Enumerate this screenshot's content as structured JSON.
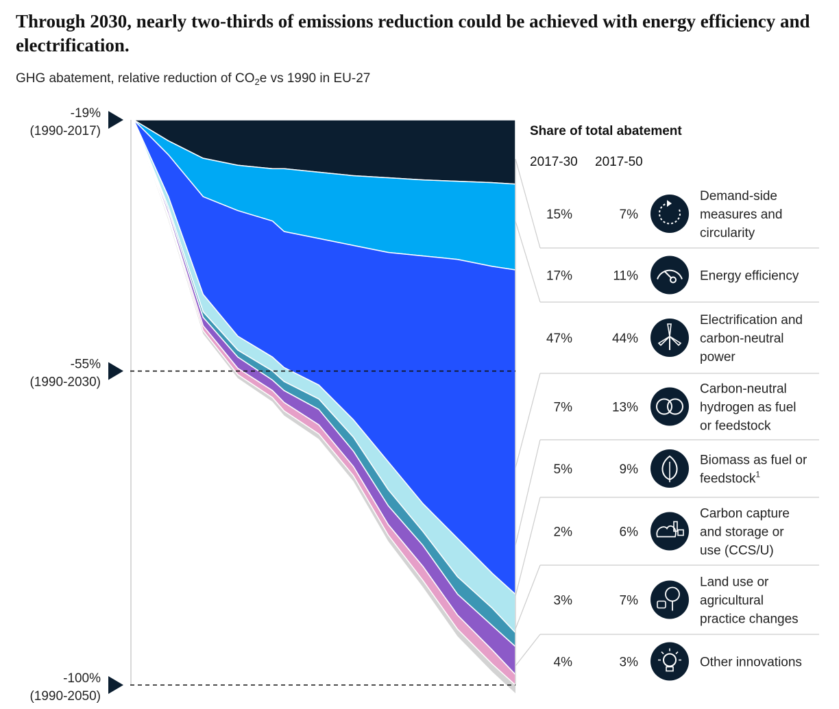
{
  "title": "Through 2030, nearly two-thirds of emissions reduction could be achieved with energy efficiency and electrification.",
  "subtitle_main": "GHG abatement, relative reduction of CO",
  "subtitle_sub": "2",
  "subtitle_rest": "e vs 1990 in EU-27",
  "colors": {
    "dark": "#0b1e30",
    "demand": "#00a9f4",
    "efficiency": "#2251ff",
    "electrification": "#aee6f0",
    "hydrogen": "#3c96b4",
    "biomass": "#8c5ac8",
    "ccs": "#e69fc8",
    "land": "#d3d3d3",
    "icon_bg": "#0b1e30"
  },
  "chart_data": {
    "type": "area",
    "x": [
      2017,
      2020,
      2023,
      2026,
      2029,
      2030,
      2033,
      2036,
      2039,
      2042,
      2045,
      2048,
      2050
    ],
    "y_reference_markers": [
      {
        "value": -19,
        "label": "-19%",
        "period": "(1990-2017)"
      },
      {
        "value": -55,
        "label": "-55%",
        "period": "(1990-2030)"
      },
      {
        "value": -100,
        "label": "-100%",
        "period": "(1990-2050)"
      }
    ],
    "ylim": [
      -100,
      -19
    ],
    "share_header": "Share of total abatement",
    "columns": [
      "2017-30",
      "2017-50"
    ],
    "categories": [
      {
        "name_lines": [
          "Demand-side",
          "measures and",
          "circularity"
        ],
        "icon": "circular-arrow-icon",
        "share_2017_30": "15%",
        "share_2017_50": "7%"
      },
      {
        "name_lines": [
          "Energy efficiency"
        ],
        "icon": "speedometer-icon",
        "share_2017_30": "17%",
        "share_2017_50": "11%"
      },
      {
        "name_lines": [
          "Electrification and",
          "carbon-neutral",
          "power"
        ],
        "icon": "wind-turbine-icon",
        "share_2017_30": "47%",
        "share_2017_50": "44%"
      },
      {
        "name_lines": [
          "Carbon-neutral",
          "hydrogen as fuel",
          "or feedstock"
        ],
        "icon": "hydrogen-molecule-icon",
        "share_2017_30": "7%",
        "share_2017_50": "13%"
      },
      {
        "name_lines": [
          "Biomass as fuel or",
          "feedstock"
        ],
        "footnote": "1",
        "icon": "leaf-icon",
        "share_2017_30": "5%",
        "share_2017_50": "9%"
      },
      {
        "name_lines": [
          "Carbon capture",
          "and storage or",
          "use (CCS/U)"
        ],
        "icon": "co2-capture-icon",
        "share_2017_30": "2%",
        "share_2017_50": "6%"
      },
      {
        "name_lines": [
          "Land use or",
          "agricultural",
          "practice changes"
        ],
        "icon": "tree-cow-icon",
        "share_2017_30": "3%",
        "share_2017_50": "7%"
      },
      {
        "name_lines": [
          "Other innovations"
        ],
        "icon": "lightbulb-icon",
        "share_2017_30": "4%",
        "share_2017_50": "3%"
      }
    ],
    "series": [
      {
        "key": "dark",
        "lower": [
          -19,
          -22,
          -24.5,
          -25.5,
          -26,
          -26,
          -26.5,
          -27,
          -27.3,
          -27.6,
          -27.8,
          -28,
          -28.2
        ]
      },
      {
        "key": "demand",
        "lower": [
          -19,
          -24,
          -30,
          -32,
          -33.5,
          -35,
          -36,
          -37,
          -38,
          -38.5,
          -39,
          -40,
          -40.5
        ]
      },
      {
        "key": "efficiency",
        "lower": [
          -19,
          -30,
          -44,
          -50,
          -53,
          -54.5,
          -57,
          -62,
          -68,
          -74,
          -79,
          -84,
          -87
        ]
      },
      {
        "key": "electrification",
        "lower": [
          -19,
          -31.5,
          -46.5,
          -52,
          -55,
          -56.5,
          -59,
          -64.5,
          -72,
          -78,
          -84.5,
          -89,
          -92.5
        ]
      },
      {
        "key": "hydrogen",
        "lower": [
          -19,
          -32,
          -47.3,
          -53,
          -56.3,
          -57.8,
          -60.5,
          -66.5,
          -74.3,
          -80,
          -87,
          -91.5,
          -94.5
        ]
      },
      {
        "key": "biomass",
        "lower": [
          -19,
          -32.6,
          -48.5,
          -54.6,
          -57.8,
          -59.5,
          -62.7,
          -68.7,
          -77,
          -83,
          -90,
          -95,
          -98.5
        ]
      },
      {
        "key": "ccs",
        "lower": [
          -19,
          -33,
          -49.2,
          -55.5,
          -58.8,
          -60.7,
          -64,
          -70,
          -78.5,
          -85,
          -92,
          -97,
          -100
        ]
      }
    ]
  }
}
